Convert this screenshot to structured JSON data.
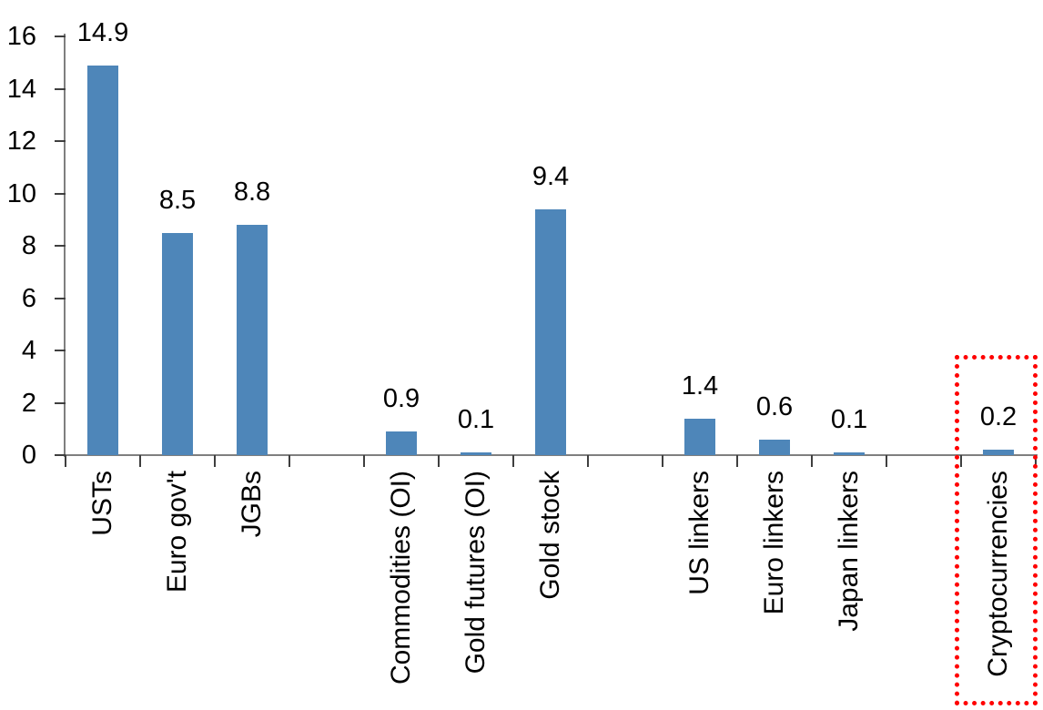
{
  "chart_data": {
    "type": "bar",
    "title": "",
    "xlabel": "",
    "ylabel": "",
    "ylim": [
      0,
      16
    ],
    "y_ticks": [
      0,
      2,
      4,
      6,
      8,
      10,
      12,
      14,
      16
    ],
    "grid": false,
    "legend": false,
    "bar_color": "#4e86b9",
    "axis_color": "#7f7f7f",
    "tick_color": "#3f3f3f",
    "text_color": "#000000",
    "categories": [
      "USTs",
      "Euro gov't",
      "JGBs",
      "Commodities (OI)",
      "Gold futures (OI)",
      "Gold stock",
      "US linkers",
      "Euro linkers",
      "Japan linkers",
      "Cryptocurrencies"
    ],
    "values": [
      14.9,
      8.5,
      8.8,
      0.9,
      0.1,
      9.4,
      1.4,
      0.6,
      0.1,
      0.2
    ],
    "groups": [
      {
        "items": [
          {
            "label": "USTs",
            "value": 14.9,
            "value_label": "14.9"
          },
          {
            "label": "Euro gov't",
            "value": 8.5,
            "value_label": "8.5"
          },
          {
            "label": "JGBs",
            "value": 8.8,
            "value_label": "8.8"
          }
        ]
      },
      {
        "items": [
          {
            "label": "Commodities (OI)",
            "value": 0.9,
            "value_label": "0.9"
          },
          {
            "label": "Gold futures (OI)",
            "value": 0.1,
            "value_label": "0.1"
          },
          {
            "label": "Gold stock",
            "value": 9.4,
            "value_label": "9.4"
          }
        ]
      },
      {
        "items": [
          {
            "label": "US linkers",
            "value": 1.4,
            "value_label": "1.4"
          },
          {
            "label": "Euro linkers",
            "value": 0.6,
            "value_label": "0.6"
          },
          {
            "label": "Japan linkers",
            "value": 0.1,
            "value_label": "0.1"
          }
        ]
      },
      {
        "items": [
          {
            "label": "Cryptocurrencies",
            "value": 0.2,
            "value_label": "0.2",
            "highlighted": true
          }
        ]
      }
    ],
    "highlight": {
      "category": "Cryptocurrencies",
      "box_color": "#ff0000",
      "box_style": "dotted"
    }
  }
}
